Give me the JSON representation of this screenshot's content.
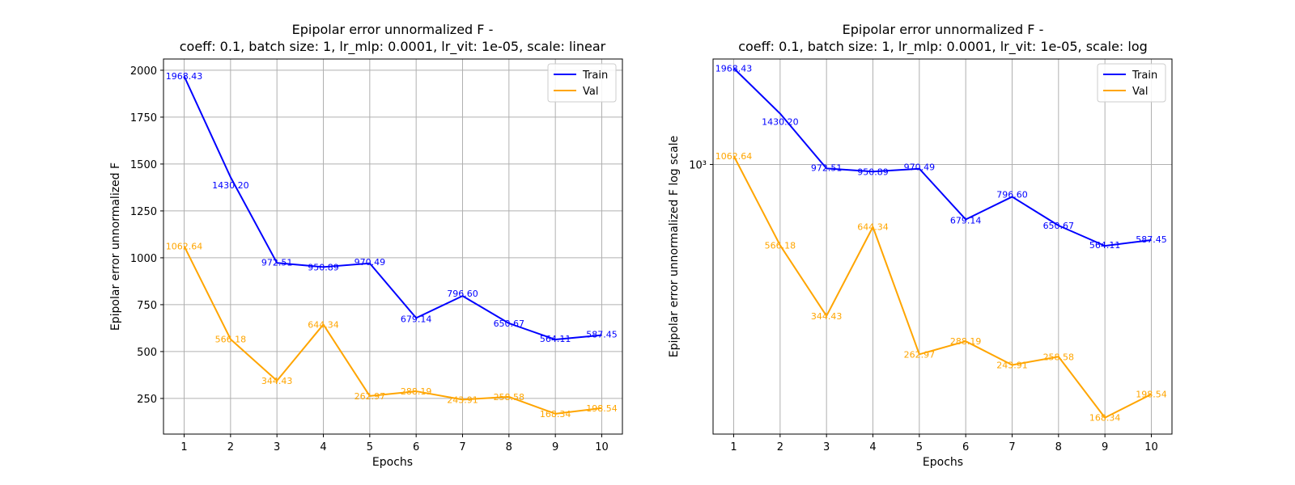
{
  "chart_data": [
    {
      "type": "line",
      "title_line1": "Epipolar error unnormalized F -",
      "title_line2": "coeff: 0.1, batch size: 1, lr_mlp: 0.0001, lr_vit: 1e-05, scale: linear",
      "xlabel": "Epochs",
      "ylabel": "Epipolar error unnormalized F",
      "yscale": "linear",
      "ylim": [
        60,
        2060
      ],
      "yticks": [
        250,
        500,
        750,
        1000,
        1250,
        1500,
        1750,
        2000
      ],
      "ytick_labels": [
        "250",
        "500",
        "750",
        "1000",
        "1250",
        "1500",
        "1750",
        "2000"
      ],
      "x": [
        1,
        2,
        3,
        4,
        5,
        6,
        7,
        8,
        9,
        10
      ],
      "xtick_labels": [
        "1",
        "2",
        "3",
        "4",
        "5",
        "6",
        "7",
        "8",
        "9",
        "10"
      ],
      "grid": true,
      "legend": "top-right",
      "series": [
        {
          "name": "Train",
          "color": "#0000ff",
          "values": [
            1968.43,
            1430.2,
            972.51,
            950.89,
            970.49,
            679.14,
            796.6,
            650.67,
            564.11,
            587.45
          ],
          "labels": [
            "1968.43",
            "1430.20",
            "972.51",
            "950.89",
            "970.49",
            "679.14",
            "796.60",
            "650.67",
            "564.11",
            "587.45"
          ]
        },
        {
          "name": "Val",
          "color": "#ffa500",
          "values": [
            1062.64,
            566.18,
            344.43,
            644.34,
            262.97,
            288.19,
            243.91,
            258.58,
            168.34,
            198.54
          ],
          "labels": [
            "1062.64",
            "566.18",
            "344.43",
            "644.34",
            "262.97",
            "288.19",
            "243.91",
            "258.58",
            "168.34",
            "198.54"
          ]
        }
      ]
    },
    {
      "type": "line",
      "title_line1": "Epipolar error unnormalized F -",
      "title_line2": "coeff: 0.1, batch size: 1, lr_mlp: 0.0001, lr_vit: 1e-05, scale: log",
      "xlabel": "Epochs",
      "ylabel": "Epipolar error unnormalized F log scale",
      "yscale": "log",
      "ylim": [
        150,
        2100
      ],
      "yticks": [
        1000
      ],
      "ytick_labels": [
        "10³"
      ],
      "x": [
        1,
        2,
        3,
        4,
        5,
        6,
        7,
        8,
        9,
        10
      ],
      "xtick_labels": [
        "1",
        "2",
        "3",
        "4",
        "5",
        "6",
        "7",
        "8",
        "9",
        "10"
      ],
      "grid": true,
      "legend": "top-right",
      "series": [
        {
          "name": "Train",
          "color": "#0000ff",
          "values": [
            1968.43,
            1430.2,
            972.51,
            950.89,
            970.49,
            679.14,
            796.6,
            650.67,
            564.11,
            587.45
          ],
          "labels": [
            "1968.43",
            "1430.20",
            "972.51",
            "950.89",
            "970.49",
            "679.14",
            "796.60",
            "650.67",
            "564.11",
            "587.45"
          ]
        },
        {
          "name": "Val",
          "color": "#ffa500",
          "values": [
            1062.64,
            566.18,
            344.43,
            644.34,
            262.97,
            288.19,
            243.91,
            258.58,
            168.34,
            198.54
          ],
          "labels": [
            "1062.64",
            "566.18",
            "344.43",
            "644.34",
            "262.97",
            "288.19",
            "243.91",
            "258.58",
            "168.34",
            "198.54"
          ]
        }
      ]
    }
  ]
}
